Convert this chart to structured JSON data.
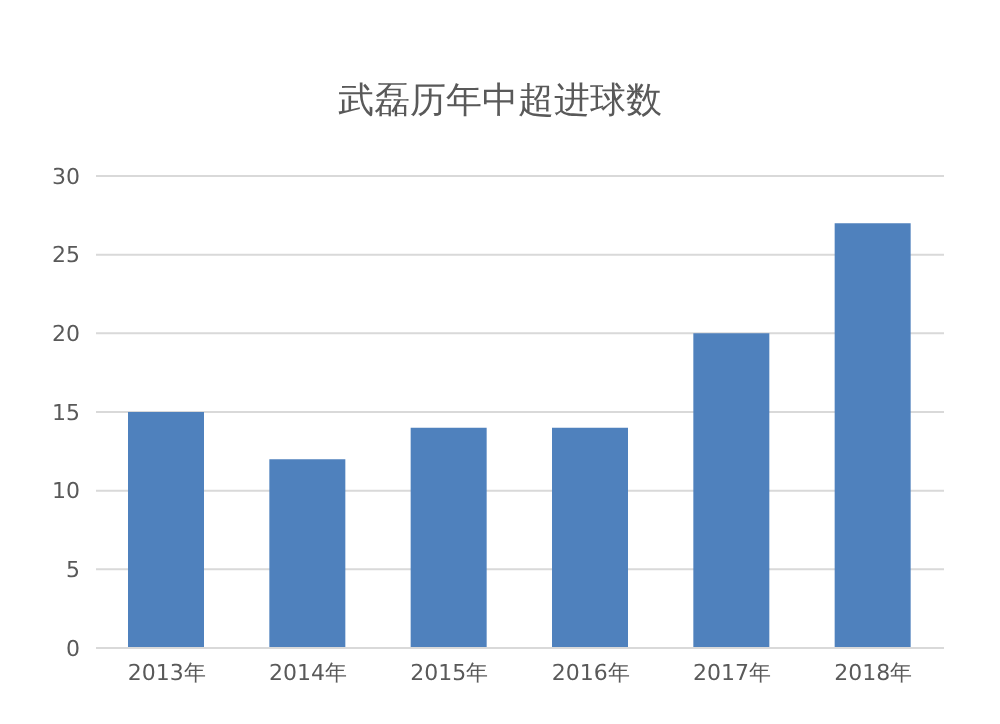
{
  "chart_data": {
    "type": "bar",
    "title": "武磊历年中超进球数",
    "categories": [
      "2013年",
      "2014年",
      "2015年",
      "2016年",
      "2017年",
      "2018年"
    ],
    "values": [
      15,
      12,
      14,
      14,
      20,
      27
    ],
    "color": "#4f81bd",
    "ylim": [
      0,
      30
    ],
    "yticks": [
      0,
      5,
      10,
      15,
      20,
      25,
      30
    ],
    "grid": "y"
  }
}
